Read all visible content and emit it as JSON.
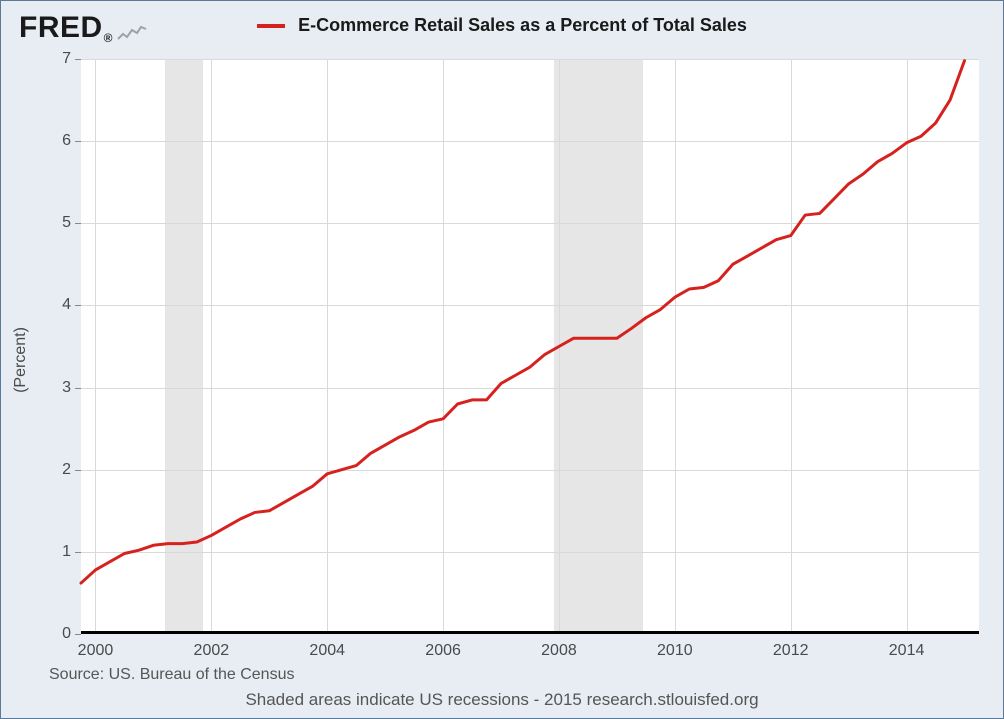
{
  "logo": {
    "text": "FRED",
    "registered": "®"
  },
  "legend": {
    "label": "E-Commerce Retail Sales as a Percent of Total Sales"
  },
  "source": {
    "text": "Source: US. Bureau of the Census"
  },
  "footnote": {
    "text": "Shaded areas indicate US recessions - 2015 research.stlouisfed.org"
  },
  "chart": {
    "type": "line",
    "ylabel": "(Percent)",
    "background_color": "#ffffff",
    "frame_background": "#e7edf3",
    "grid_color": "#d9d9d9",
    "grid_width": 1,
    "axis_line_color": "#000000",
    "line_color": "#d6221f",
    "line_width": 3,
    "recession_color": "#e6e6e6",
    "tick_label_color": "#4a4a4a",
    "tick_fontsize": 16,
    "title_fontsize": 18,
    "xlim": [
      1999.75,
      2015.25
    ],
    "ylim": [
      0,
      7
    ],
    "yticks": [
      0,
      1,
      2,
      3,
      4,
      5,
      6,
      7
    ],
    "xticks": [
      2000,
      2002,
      2004,
      2006,
      2008,
      2010,
      2012,
      2014
    ],
    "recessions": [
      {
        "start": 2001.2,
        "end": 2001.85
      },
      {
        "start": 2007.92,
        "end": 2009.45
      }
    ],
    "series": {
      "x": [
        1999.75,
        2000.0,
        2000.25,
        2000.5,
        2000.75,
        2001.0,
        2001.25,
        2001.5,
        2001.75,
        2002.0,
        2002.25,
        2002.5,
        2002.75,
        2003.0,
        2003.25,
        2003.5,
        2003.75,
        2004.0,
        2004.25,
        2004.5,
        2004.75,
        2005.0,
        2005.25,
        2005.5,
        2005.75,
        2006.0,
        2006.25,
        2006.5,
        2006.75,
        2007.0,
        2007.25,
        2007.5,
        2007.75,
        2008.0,
        2008.25,
        2008.5,
        2008.75,
        2009.0,
        2009.25,
        2009.5,
        2009.75,
        2010.0,
        2010.25,
        2010.5,
        2010.75,
        2011.0,
        2011.25,
        2011.5,
        2011.75,
        2012.0,
        2012.25,
        2012.5,
        2012.75,
        2013.0,
        2013.25,
        2013.5,
        2013.75,
        2014.0,
        2014.25,
        2014.5,
        2014.75,
        2015.0
      ],
      "y": [
        0.62,
        0.78,
        0.88,
        0.98,
        1.02,
        1.08,
        1.1,
        1.1,
        1.12,
        1.2,
        1.3,
        1.4,
        1.48,
        1.5,
        1.6,
        1.7,
        1.8,
        1.95,
        2.0,
        2.05,
        2.2,
        2.3,
        2.4,
        2.48,
        2.58,
        2.62,
        2.8,
        2.85,
        2.85,
        3.05,
        3.15,
        3.25,
        3.4,
        3.5,
        3.6,
        3.6,
        3.6,
        3.6,
        3.72,
        3.85,
        3.95,
        4.1,
        4.2,
        4.22,
        4.3,
        4.5,
        4.6,
        4.7,
        4.8,
        4.85,
        5.1,
        5.12,
        5.3,
        5.48,
        5.6,
        5.75,
        5.85,
        5.98,
        6.06,
        6.22,
        6.5,
        6.98
      ]
    }
  }
}
